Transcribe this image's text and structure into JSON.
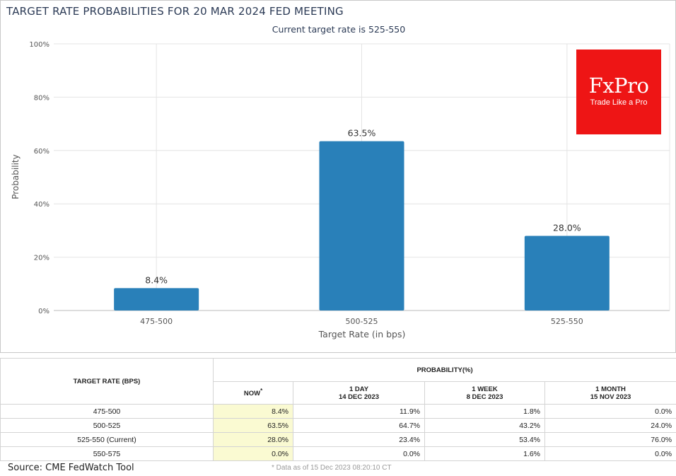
{
  "chart_data": {
    "type": "bar",
    "title": "TARGET RATE PROBABILITIES FOR 20 MAR 2024 FED MEETING",
    "subtitle": "Current target rate is 525-550",
    "categories": [
      "475-500",
      "500-525",
      "525-550"
    ],
    "values": [
      8.4,
      63.5,
      28.0
    ],
    "data_labels": [
      "8.4%",
      "63.5%",
      "28.0%"
    ],
    "xlabel": "Target Rate (in bps)",
    "ylabel": "Probability",
    "ylim": [
      0,
      100
    ],
    "yticks": [
      0,
      20,
      40,
      60,
      80,
      100
    ],
    "ytick_labels": [
      "0%",
      "20%",
      "40%",
      "60%",
      "80%",
      "100%"
    ],
    "grid": true,
    "bar_color": "#2980b9"
  },
  "logo": {
    "name": "FxPro",
    "tagline": "Trade Like a Pro",
    "color": "#ee1515"
  },
  "table": {
    "col_rate": "TARGET RATE (BPS)",
    "col_probability": "PROBABILITY(%)",
    "col_now": "NOW",
    "col_now_marker": "*",
    "columns": [
      {
        "label": "1 DAY",
        "date": "14 DEC 2023"
      },
      {
        "label": "1 WEEK",
        "date": "8 DEC 2023"
      },
      {
        "label": "1 MONTH",
        "date": "15 NOV 2023"
      }
    ],
    "rows": [
      {
        "rate": "475-500",
        "now": "8.4%",
        "day": "11.9%",
        "week": "1.8%",
        "month": "0.0%"
      },
      {
        "rate": "500-525",
        "now": "63.5%",
        "day": "64.7%",
        "week": "43.2%",
        "month": "24.0%"
      },
      {
        "rate": "525-550 (Current)",
        "now": "28.0%",
        "day": "23.4%",
        "week": "53.4%",
        "month": "76.0%"
      },
      {
        "rate": "550-575",
        "now": "0.0%",
        "day": "0.0%",
        "week": "1.6%",
        "month": "0.0%"
      }
    ],
    "footnote": "* Data as of 15 Dec 2023 08:20:10 CT"
  },
  "source": "Source: CME FedWatch Tool"
}
